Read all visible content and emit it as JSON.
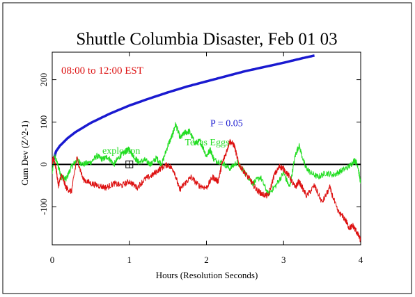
{
  "chart_data": {
    "type": "line",
    "title": "Shuttle Columbia Disaster, Feb 01 03",
    "subtitle": "08:00 to 12:00 EST",
    "xlabel": "Hours (Resolution Seconds)",
    "ylabel": "Cum Dev (Z^2-1)",
    "xlim": [
      0,
      4
    ],
    "ylim": [
      -190,
      265
    ],
    "x_ticks": [
      0,
      1,
      2,
      3,
      4
    ],
    "y_ticks": [
      -100,
      0,
      100,
      200
    ],
    "grid": false,
    "annotations": [
      {
        "text": "P = 0.05",
        "x": 2.05,
        "y": 90,
        "color": "#1a1ad0"
      },
      {
        "text": "explosion",
        "x": 0.65,
        "y": 25,
        "color": "#22dd22"
      },
      {
        "text": "Texas Eggs",
        "x": 1.72,
        "y": 45,
        "color": "#22dd22"
      }
    ],
    "marker": {
      "shape": "square-cross",
      "x": 1.0,
      "y": 0
    },
    "series": [
      {
        "name": "P = 0.05",
        "color": "#1a1ad0",
        "kind": "envelope",
        "x": [
          0.0,
          0.05,
          0.1,
          0.2,
          0.3,
          0.5,
          0.75,
          1.0,
          1.25,
          1.5,
          1.75,
          2.0,
          2.25,
          2.5,
          2.75,
          3.0,
          3.25,
          3.4
        ],
        "values": [
          0,
          31,
          44,
          62,
          76,
          98,
          120,
          139,
          155,
          170,
          184,
          196,
          208,
          220,
          230,
          240,
          251,
          257
        ]
      },
      {
        "name": "Texas Eggs",
        "color": "#22dd22",
        "x": [
          0.0,
          0.03,
          0.08,
          0.12,
          0.18,
          0.25,
          0.32,
          0.4,
          0.5,
          0.58,
          0.65,
          0.72,
          0.8,
          0.88,
          0.95,
          1.0,
          1.05,
          1.12,
          1.2,
          1.28,
          1.35,
          1.42,
          1.5,
          1.56,
          1.6,
          1.66,
          1.72,
          1.78,
          1.85,
          1.92,
          2.0,
          2.05,
          2.1,
          2.2,
          2.3,
          2.4,
          2.5,
          2.6,
          2.7,
          2.8,
          2.9,
          3.0,
          3.08,
          3.15,
          3.2,
          3.28,
          3.35,
          3.45,
          3.55,
          3.65,
          3.75,
          3.85,
          3.92,
          3.96,
          4.0
        ],
        "values": [
          -20,
          20,
          -5,
          -30,
          -35,
          -5,
          10,
          0,
          5,
          20,
          12,
          18,
          0,
          20,
          30,
          38,
          20,
          5,
          10,
          0,
          15,
          0,
          45,
          70,
          95,
          62,
          75,
          78,
          50,
          55,
          20,
          35,
          10,
          5,
          -10,
          5,
          -20,
          -45,
          -30,
          -70,
          -50,
          -20,
          -55,
          20,
          45,
          -5,
          -20,
          -30,
          -20,
          -25,
          -15,
          -5,
          10,
          0,
          -45
        ]
      },
      {
        "name": "Cum Dev",
        "color": "#dd1111",
        "x": [
          0.0,
          0.02,
          0.05,
          0.08,
          0.12,
          0.18,
          0.25,
          0.32,
          0.4,
          0.5,
          0.6,
          0.7,
          0.8,
          0.9,
          1.0,
          1.1,
          1.2,
          1.3,
          1.4,
          1.5,
          1.58,
          1.65,
          1.72,
          1.8,
          1.9,
          2.0,
          2.08,
          2.15,
          2.2,
          2.26,
          2.3,
          2.36,
          2.42,
          2.5,
          2.58,
          2.65,
          2.72,
          2.8,
          2.88,
          2.95,
          3.0,
          3.08,
          3.15,
          3.2,
          3.3,
          3.4,
          3.5,
          3.6,
          3.7,
          3.8,
          3.85,
          3.9,
          3.95,
          4.0
        ],
        "values": [
          5,
          15,
          -10,
          -50,
          -25,
          -55,
          -65,
          15,
          -35,
          -45,
          -50,
          -55,
          -45,
          -50,
          -40,
          -55,
          -35,
          -25,
          -10,
          0,
          -15,
          -60,
          -45,
          -30,
          -50,
          -55,
          -30,
          -40,
          0,
          30,
          55,
          45,
          0,
          -20,
          -40,
          -60,
          -70,
          -75,
          -25,
          -5,
          -10,
          -30,
          -55,
          -40,
          -75,
          -50,
          -90,
          -55,
          -110,
          -130,
          -150,
          -145,
          -160,
          -180
        ]
      }
    ]
  }
}
